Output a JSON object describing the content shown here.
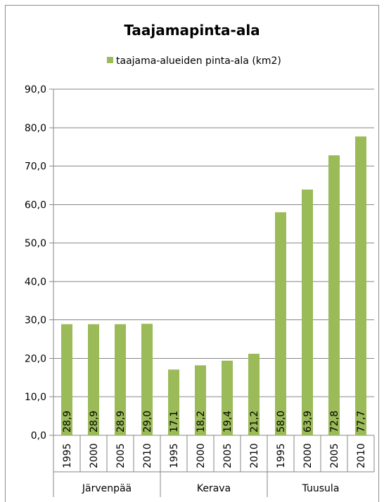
{
  "chart_data": {
    "type": "bar",
    "title": "Taajamapinta-ala",
    "legend": {
      "position": "top",
      "entries": [
        "taajama-alueiden pinta-ala (km2)"
      ]
    },
    "ylim": [
      0,
      90
    ],
    "yticks": [
      "0,0",
      "10,0",
      "20,0",
      "30,0",
      "40,0",
      "50,0",
      "60,0",
      "70,0",
      "80,0",
      "90,0"
    ],
    "ytick_values": [
      0,
      10,
      20,
      30,
      40,
      50,
      60,
      70,
      80,
      90
    ],
    "grid": true,
    "groups": [
      {
        "label": "Järvenpää",
        "categories": [
          "1995",
          "2000",
          "2005",
          "2010"
        ]
      },
      {
        "label": "Kerava",
        "categories": [
          "1995",
          "2000",
          "2005",
          "2010"
        ]
      },
      {
        "label": "Tuusula",
        "categories": [
          "1995",
          "2000",
          "2005",
          "2010"
        ]
      }
    ],
    "series": [
      {
        "name": "taajama-alueiden pinta-ala (km2)",
        "color": "#9bbb59",
        "values": [
          28.9,
          28.9,
          28.9,
          29.0,
          17.1,
          18.2,
          19.4,
          21.2,
          58.0,
          63.9,
          72.8,
          77.7
        ],
        "labels": [
          "28,9",
          "28,9",
          "28,9",
          "29,0",
          "17,1",
          "18,2",
          "19,4",
          "21,2",
          "58,0",
          "63,9",
          "72,8",
          "77,7"
        ]
      }
    ]
  }
}
